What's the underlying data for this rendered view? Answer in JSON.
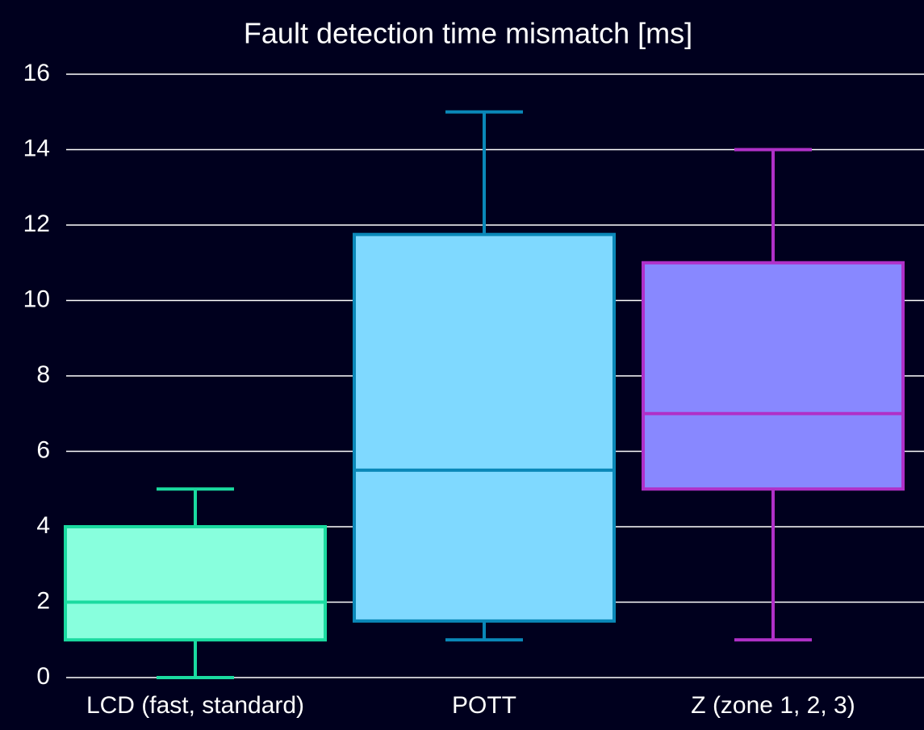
{
  "chart_data": {
    "type": "box",
    "title": "Fault detection time mismatch [ms]",
    "categories": [
      "LCD (fast, standard)",
      "POTT",
      "Z (zone 1, 2, 3)"
    ],
    "boxes": [
      {
        "min": 0,
        "q1": 1,
        "median": 2,
        "q3": 4,
        "max": 5,
        "fill": "#88ffdd",
        "stroke": "#1adba0"
      },
      {
        "min": 1,
        "q1": 1.5,
        "median": 5.5,
        "q3": 11.75,
        "max": 15,
        "fill": "#7fd9ff",
        "stroke": "#0a88b8"
      },
      {
        "min": 1,
        "q1": 5,
        "median": 7,
        "q3": 11,
        "max": 14,
        "fill": "#8888ff",
        "stroke": "#b030c8"
      }
    ],
    "ylim": [
      0,
      16
    ],
    "yticks": [
      0,
      2,
      4,
      6,
      8,
      10,
      12,
      14,
      16
    ],
    "grid": true
  }
}
